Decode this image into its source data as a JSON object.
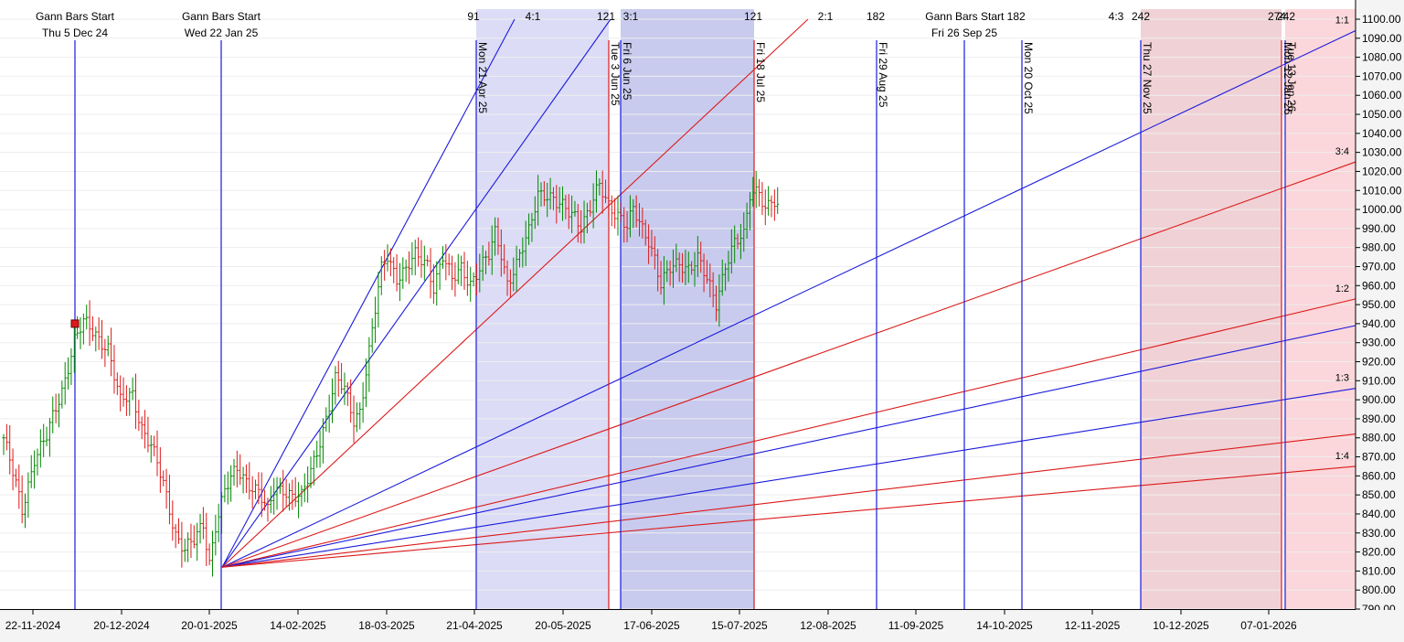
{
  "chart_data": {
    "type": "candlestick",
    "y_axis": {
      "ylim": [
        790,
        1100
      ],
      "ticks": [
        "790.00",
        "800.00",
        "810.00",
        "820.00",
        "830.00",
        "840.00",
        "850.00",
        "860.00",
        "870.00",
        "880.00",
        "890.00",
        "900.00",
        "910.00",
        "920.00",
        "930.00",
        "940.00",
        "950.00",
        "960.00",
        "970.00",
        "980.00",
        "990.00",
        "1000.00",
        "1010.00",
        "1020.00",
        "1030.00",
        "1040.00",
        "1050.00",
        "1060.00",
        "1070.00",
        "1080.00",
        "1090.00",
        "1100.00"
      ],
      "position": "right"
    },
    "x_axis": {
      "ticks": [
        "22-11-2024",
        "20-12-2024",
        "20-01-2025",
        "14-02-2025",
        "18-03-2025",
        "21-04-2025",
        "20-05-2025",
        "17-06-2025",
        "15-07-2025",
        "12-08-2025",
        "11-09-2025",
        "14-10-2025",
        "12-11-2025",
        "10-12-2025",
        "07-01-2026"
      ]
    },
    "gann_starts": [
      {
        "title": "Gann Bars Start",
        "date": "Thu 5 Dec 24"
      },
      {
        "title": "Gann Bars Start",
        "date": "Wed 22 Jan 25"
      },
      {
        "title": "Gann Bars Start 182",
        "date": "Fri 26 Sep 25"
      }
    ],
    "top_labels": [
      "91",
      "4:1",
      "121",
      "3:1",
      "121",
      "2:1",
      "182",
      "4:3",
      "242",
      "274",
      "242"
    ],
    "vertical_markers": [
      {
        "label": "Mon 21 Apr 25",
        "color": "blue"
      },
      {
        "label": "Tue 3 Jun 25",
        "color": "red"
      },
      {
        "label": "Fri 6 Jun 25",
        "color": "blue"
      },
      {
        "label": "Fri 18 Jul 25",
        "color": "red"
      },
      {
        "label": "Fri 29 Aug 25",
        "color": "blue"
      },
      {
        "label": "Mon 20 Oct 25",
        "color": "blue"
      },
      {
        "label": "Thu 27 Nov 25",
        "color": "blue"
      },
      {
        "label": "Mon 12 Jan 26",
        "color": "red"
      },
      {
        "label": "Tue 13 Jan 26",
        "color": "blue"
      }
    ],
    "fan_origin": {
      "date": "Wed 22 Jan 25",
      "price": 812
    },
    "fan_lines": [
      {
        "label": "",
        "end_price": 1100,
        "color": "blue"
      },
      {
        "label": "",
        "end_price": 1100,
        "color": "blue"
      },
      {
        "label": "",
        "end_price": 1100,
        "color": "red"
      },
      {
        "label": "1:1",
        "end_price": 1094,
        "color": "blue"
      },
      {
        "label": "3:4",
        "end_price": 1025,
        "color": "red"
      },
      {
        "label": "1:2",
        "end_price": 953,
        "color": "red"
      },
      {
        "label": "",
        "end_price": 939,
        "color": "blue"
      },
      {
        "label": "1:3",
        "end_price": 906,
        "color": "blue"
      },
      {
        "label": "",
        "end_price": 882,
        "color": "red"
      },
      {
        "label": "1:4",
        "end_price": 865,
        "color": "red"
      }
    ],
    "shaded_regions": [
      {
        "from": "Mon 21 Apr 25",
        "to": "Tue 3 Jun 25",
        "color": "#dcdcf6"
      },
      {
        "from": "Fri 6 Jun 25",
        "to": "Fri 18 Jul 25",
        "color": "#c8cbee"
      },
      {
        "from": "Thu 27 Nov 25",
        "to": "Mon 12 Jan 26",
        "color": "#f0d2d6"
      },
      {
        "from": "Tue 13 Jan 26",
        "to": "end",
        "color": "#fbd6da"
      }
    ],
    "high_marker": {
      "date": "Thu 5 Dec 24",
      "price": 940
    },
    "price_path": [
      [
        0,
        880
      ],
      [
        6,
        842
      ],
      [
        10,
        870
      ],
      [
        14,
        880
      ],
      [
        19,
        905
      ],
      [
        23,
        932
      ],
      [
        26,
        940
      ],
      [
        34,
        928
      ],
      [
        38,
        898
      ],
      [
        42,
        903
      ],
      [
        45,
        886
      ],
      [
        48,
        876
      ],
      [
        52,
        855
      ],
      [
        56,
        830
      ],
      [
        59,
        822
      ],
      [
        62,
        825
      ],
      [
        65,
        834
      ],
      [
        67,
        815
      ],
      [
        69,
        835
      ],
      [
        72,
        852
      ],
      [
        76,
        863
      ],
      [
        79,
        858
      ],
      [
        83,
        852
      ],
      [
        86,
        840
      ],
      [
        88,
        852
      ],
      [
        91,
        854
      ],
      [
        94,
        850
      ],
      [
        97,
        848
      ],
      [
        100,
        862
      ],
      [
        104,
        885
      ],
      [
        108,
        910
      ],
      [
        111,
        905
      ],
      [
        114,
        890
      ],
      [
        116,
        895
      ],
      [
        119,
        925
      ],
      [
        123,
        968
      ],
      [
        125,
        976
      ],
      [
        128,
        965
      ],
      [
        131,
        968
      ],
      [
        134,
        975
      ],
      [
        138,
        972
      ],
      [
        140,
        960
      ],
      [
        143,
        975
      ],
      [
        146,
        962
      ],
      [
        149,
        970
      ],
      [
        152,
        962
      ],
      [
        155,
        968
      ],
      [
        158,
        975
      ],
      [
        160,
        988
      ],
      [
        162,
        978
      ],
      [
        164,
        962
      ],
      [
        167,
        970
      ],
      [
        171,
        988
      ],
      [
        174,
        1010
      ],
      [
        177,
        1008
      ],
      [
        180,
        1002
      ],
      [
        183,
        1000
      ],
      [
        186,
        998
      ],
      [
        188,
        992
      ],
      [
        191,
        1000
      ],
      [
        194,
        1012
      ],
      [
        197,
        1003
      ],
      [
        200,
        998
      ],
      [
        203,
        990
      ],
      [
        205,
        999
      ],
      [
        208,
        990
      ],
      [
        210,
        985
      ],
      [
        212,
        975
      ],
      [
        214,
        960
      ],
      [
        217,
        968
      ],
      [
        220,
        972
      ],
      [
        223,
        970
      ],
      [
        226,
        974
      ],
      [
        229,
        962
      ],
      [
        232,
        951
      ],
      [
        235,
        972
      ],
      [
        238,
        982
      ],
      [
        241,
        985
      ],
      [
        243,
        1008
      ],
      [
        246,
        1012
      ],
      [
        248,
        1000
      ],
      [
        250,
        1005
      ],
      [
        252,
        998
      ]
    ],
    "bar_spacing": 3.36
  }
}
